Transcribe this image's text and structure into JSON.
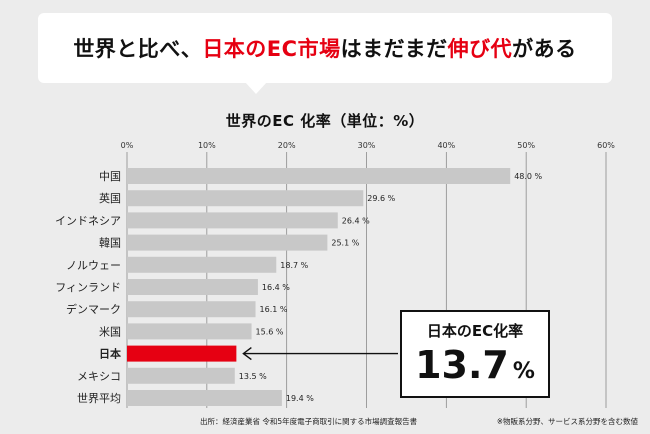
{
  "headline": {
    "prefix": "世界と比べ、",
    "highlight": "日本のEC市場",
    "middle": "はまだまだ",
    "highlight2": "伸び代",
    "suffix": "がある"
  },
  "chart_data": {
    "type": "bar",
    "orientation": "horizontal",
    "title": "世界のEC 化率（単位：%）",
    "xlim": [
      0,
      60
    ],
    "ticks": [
      0,
      10,
      20,
      30,
      40,
      50,
      60
    ],
    "tick_labels": [
      "0%",
      "10%",
      "20%",
      "30%",
      "40%",
      "50%",
      "60%"
    ],
    "grid": true,
    "categories": [
      "中国",
      "英国",
      "インドネシア",
      "韓国",
      "ノルウェー",
      "フィンランド",
      "デンマーク",
      "米国",
      "日本",
      "メキシコ",
      "世界平均"
    ],
    "values": [
      48.0,
      29.6,
      26.4,
      25.1,
      18.7,
      16.4,
      16.1,
      15.6,
      13.7,
      13.5,
      19.4
    ],
    "value_labels": [
      "48.0 %",
      "29.6 %",
      "26.4 %",
      "25.1 %",
      "18.7 %",
      "16.4 %",
      "16.1 %",
      "15.6 %",
      "",
      "13.5 %",
      "19.4 %"
    ],
    "highlight_category": "日本",
    "colors": {
      "bar": "#c8c8c8",
      "highlight": "#e60012",
      "grid": "#8a8a8a",
      "text": "#222222"
    }
  },
  "callout": {
    "title": "日本のEC化率",
    "value": "13.7",
    "unit": "%"
  },
  "footer": {
    "source": "出所：経済産業省 令和5年度電子商取引に関する市場調査報告書",
    "note": "※物販系分野、サービス系分野を含む数値"
  }
}
